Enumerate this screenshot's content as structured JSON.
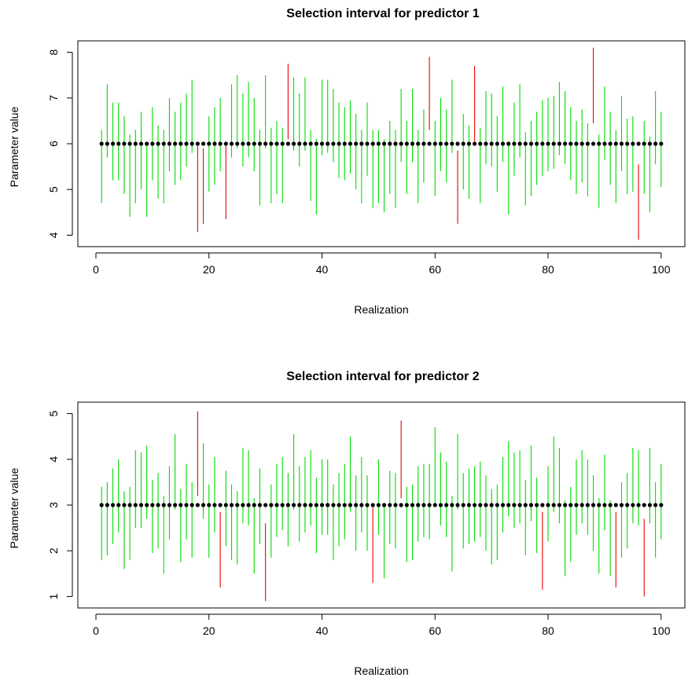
{
  "chart_data": [
    {
      "type": "interval",
      "title": "Selection interval for predictor 1",
      "xlabel": "Realization",
      "ylabel": "Parameter value",
      "xlim": [
        -3.2,
        104.2
      ],
      "ylim": [
        3.75,
        8.25
      ],
      "xticks": [
        0,
        20,
        40,
        60,
        80,
        100
      ],
      "yticks": [
        4,
        5,
        6,
        7,
        8
      ],
      "point_value": 6,
      "colors": {
        "covers": "#00dd00",
        "misses": "#ee0000",
        "point": "#000000"
      },
      "intervals": [
        [
          4.7,
          6.3
        ],
        [
          5.7,
          7.3
        ],
        [
          5.2,
          6.9
        ],
        [
          5.2,
          6.9
        ],
        [
          4.9,
          6.6
        ],
        [
          4.4,
          6.2
        ],
        [
          4.7,
          6.3
        ],
        [
          5.0,
          6.7
        ],
        [
          4.4,
          6.0
        ],
        [
          5.2,
          6.8
        ],
        [
          4.8,
          6.4
        ],
        [
          4.7,
          6.3
        ],
        [
          5.4,
          7.0
        ],
        [
          5.1,
          6.7
        ],
        [
          5.2,
          6.9
        ],
        [
          5.5,
          7.1
        ],
        [
          5.8,
          7.4
        ],
        [
          4.07,
          5.95
        ],
        [
          4.25,
          5.9
        ],
        [
          4.95,
          6.6
        ],
        [
          5.1,
          6.8
        ],
        [
          5.4,
          7.0
        ],
        [
          4.35,
          5.95
        ],
        [
          5.7,
          7.3
        ],
        [
          5.9,
          7.5
        ],
        [
          5.5,
          7.1
        ],
        [
          5.7,
          7.35
        ],
        [
          5.4,
          7.0
        ],
        [
          4.65,
          6.3
        ],
        [
          5.9,
          7.5
        ],
        [
          4.7,
          6.35
        ],
        [
          4.9,
          6.5
        ],
        [
          4.7,
          6.35
        ],
        [
          6.1,
          7.75
        ],
        [
          5.85,
          7.45
        ],
        [
          5.5,
          7.1
        ],
        [
          5.85,
          7.45
        ],
        [
          4.75,
          6.3
        ],
        [
          4.45,
          6.1
        ],
        [
          5.75,
          7.4
        ],
        [
          5.8,
          7.4
        ],
        [
          5.6,
          7.2
        ],
        [
          5.25,
          6.9
        ],
        [
          5.2,
          6.8
        ],
        [
          5.35,
          6.95
        ],
        [
          5.0,
          6.65
        ],
        [
          4.7,
          6.3
        ],
        [
          5.3,
          6.9
        ],
        [
          4.6,
          6.3
        ],
        [
          4.7,
          6.3
        ],
        [
          4.5,
          6.1
        ],
        [
          4.9,
          6.5
        ],
        [
          4.6,
          6.3
        ],
        [
          5.6,
          7.2
        ],
        [
          4.9,
          6.5
        ],
        [
          5.6,
          7.2
        ],
        [
          4.7,
          6.3
        ],
        [
          5.15,
          6.75
        ],
        [
          6.3,
          7.9
        ],
        [
          4.85,
          6.5
        ],
        [
          5.4,
          7.0
        ],
        [
          5.15,
          6.75
        ],
        [
          5.8,
          7.4
        ],
        [
          4.25,
          5.85
        ],
        [
          5.0,
          6.65
        ],
        [
          4.8,
          6.4
        ],
        [
          6.05,
          7.7
        ],
        [
          4.7,
          6.35
        ],
        [
          5.55,
          7.15
        ],
        [
          5.5,
          7.1
        ],
        [
          4.95,
          6.6
        ],
        [
          5.6,
          7.25
        ],
        [
          4.45,
          6.05
        ],
        [
          5.3,
          6.9
        ],
        [
          5.7,
          7.3
        ],
        [
          4.65,
          6.25
        ],
        [
          4.85,
          6.5
        ],
        [
          5.1,
          6.7
        ],
        [
          5.3,
          6.95
        ],
        [
          5.4,
          7.0
        ],
        [
          5.45,
          7.05
        ],
        [
          5.75,
          7.35
        ],
        [
          5.55,
          7.15
        ],
        [
          5.2,
          6.8
        ],
        [
          4.9,
          6.5
        ],
        [
          5.15,
          6.75
        ],
        [
          4.85,
          6.45
        ],
        [
          6.45,
          8.1
        ],
        [
          4.6,
          6.2
        ],
        [
          5.65,
          7.25
        ],
        [
          5.1,
          6.7
        ],
        [
          4.7,
          6.3
        ],
        [
          5.4,
          7.05
        ],
        [
          4.9,
          6.55
        ],
        [
          4.95,
          6.6
        ],
        [
          3.9,
          5.55
        ],
        [
          4.9,
          6.5
        ],
        [
          4.5,
          6.15
        ],
        [
          5.55,
          7.15
        ],
        [
          5.05,
          6.7
        ]
      ]
    },
    {
      "type": "interval",
      "title": "Selection interval for predictor 2",
      "xlabel": "Realization",
      "ylabel": "Parameter value",
      "xlim": [
        -3.2,
        104.2
      ],
      "ylim": [
        0.75,
        5.25
      ],
      "xticks": [
        0,
        20,
        40,
        60,
        80,
        100
      ],
      "yticks": [
        1,
        2,
        3,
        4,
        5
      ],
      "point_value": 3,
      "colors": {
        "covers": "#00dd00",
        "misses": "#ee0000",
        "point": "#000000"
      },
      "intervals": [
        [
          1.8,
          3.4
        ],
        [
          1.9,
          3.5
        ],
        [
          2.15,
          3.8
        ],
        [
          2.4,
          4.0
        ],
        [
          1.6,
          3.3
        ],
        [
          1.8,
          3.4
        ],
        [
          2.5,
          4.2
        ],
        [
          2.5,
          4.15
        ],
        [
          2.7,
          4.3
        ],
        [
          1.95,
          3.55
        ],
        [
          2.05,
          3.7
        ],
        [
          1.5,
          3.2
        ],
        [
          2.25,
          3.85
        ],
        [
          2.9,
          4.55
        ],
        [
          1.75,
          3.35
        ],
        [
          2.25,
          3.9
        ],
        [
          1.85,
          3.5
        ],
        [
          3.2,
          5.05
        ],
        [
          2.7,
          4.35
        ],
        [
          1.85,
          3.45
        ],
        [
          2.4,
          4.05
        ],
        [
          1.2,
          2.85
        ],
        [
          2.1,
          3.75
        ],
        [
          1.8,
          3.45
        ],
        [
          1.7,
          3.3
        ],
        [
          2.6,
          4.25
        ],
        [
          2.55,
          4.2
        ],
        [
          1.5,
          3.15
        ],
        [
          2.15,
          3.8
        ],
        [
          0.9,
          2.6
        ],
        [
          1.85,
          3.45
        ],
        [
          2.3,
          3.9
        ],
        [
          2.45,
          4.05
        ],
        [
          2.1,
          3.7
        ],
        [
          2.9,
          4.55
        ],
        [
          2.2,
          3.85
        ],
        [
          2.4,
          4.05
        ],
        [
          2.55,
          4.2
        ],
        [
          1.95,
          3.6
        ],
        [
          2.35,
          4.0
        ],
        [
          2.35,
          4.0
        ],
        [
          1.8,
          3.45
        ],
        [
          2.1,
          3.7
        ],
        [
          2.25,
          3.9
        ],
        [
          2.85,
          4.5
        ],
        [
          2.0,
          3.65
        ],
        [
          2.4,
          4.05
        ],
        [
          2.0,
          3.65
        ],
        [
          1.3,
          2.95
        ],
        [
          2.35,
          4.0
        ],
        [
          1.4,
          3.05
        ],
        [
          2.15,
          3.75
        ],
        [
          2.05,
          3.7
        ],
        [
          3.15,
          4.85
        ],
        [
          1.75,
          3.4
        ],
        [
          1.8,
          3.45
        ],
        [
          2.2,
          3.85
        ],
        [
          2.3,
          3.9
        ],
        [
          2.25,
          3.9
        ],
        [
          3.0,
          4.7
        ],
        [
          2.55,
          4.15
        ],
        [
          2.3,
          3.95
        ],
        [
          1.55,
          3.2
        ],
        [
          2.9,
          4.55
        ],
        [
          2.05,
          3.7
        ],
        [
          2.15,
          3.8
        ],
        [
          2.2,
          3.85
        ],
        [
          2.3,
          3.95
        ],
        [
          2.0,
          3.65
        ],
        [
          1.7,
          3.35
        ],
        [
          1.8,
          3.45
        ],
        [
          2.4,
          4.05
        ],
        [
          2.75,
          4.4
        ],
        [
          2.5,
          4.15
        ],
        [
          2.6,
          4.2
        ],
        [
          1.9,
          3.55
        ],
        [
          2.65,
          4.3
        ],
        [
          1.95,
          3.6
        ],
        [
          1.15,
          2.85
        ],
        [
          2.2,
          3.85
        ],
        [
          2.85,
          4.5
        ],
        [
          2.6,
          4.25
        ],
        [
          1.45,
          3.1
        ],
        [
          1.75,
          3.4
        ],
        [
          2.35,
          4.0
        ],
        [
          2.6,
          4.2
        ],
        [
          2.35,
          4.0
        ],
        [
          2.0,
          3.65
        ],
        [
          1.5,
          3.15
        ],
        [
          2.45,
          4.1
        ],
        [
          1.45,
          3.1
        ],
        [
          1.2,
          2.85
        ],
        [
          1.85,
          3.5
        ],
        [
          2.05,
          3.7
        ],
        [
          2.6,
          4.25
        ],
        [
          2.55,
          4.2
        ],
        [
          1.0,
          2.7
        ],
        [
          2.6,
          4.25
        ],
        [
          1.85,
          3.5
        ],
        [
          2.25,
          3.9
        ]
      ]
    }
  ]
}
